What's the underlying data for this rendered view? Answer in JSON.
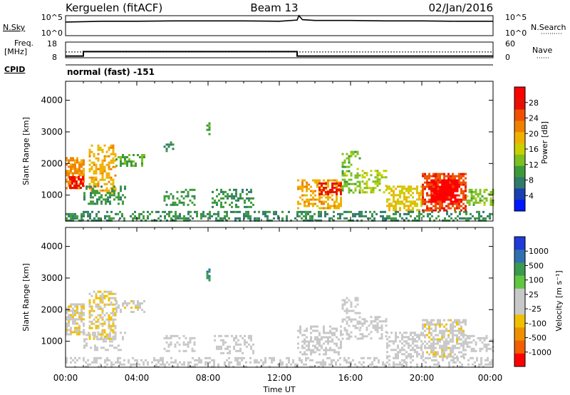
{
  "header": {
    "station": "Kerguelen (fitACF)",
    "beam": "Beam 13",
    "date": "02/Jan/2016"
  },
  "panels": {
    "nsky_label": "N.Sky",
    "nsky_ticks": [
      "10^5",
      "10^0"
    ],
    "nsearch_label": "N.Search",
    "nsearch_ticks": [
      "10^5",
      "10^0"
    ],
    "freq_label_1": "Freq.",
    "freq_label_2": "[MHz]",
    "freq_ticks": [
      "18",
      "8"
    ],
    "nave_label": "Nave",
    "nave_ticks": [
      "60",
      "0"
    ],
    "cpid_label": "CPID",
    "cpid_text": "normal (fast) -151"
  },
  "axes": {
    "xlabel": "Time UT",
    "xticks": [
      "00:00",
      "04:00",
      "08:00",
      "12:00",
      "16:00",
      "20:00",
      "00:00"
    ],
    "ylabel": "Slant Range [km]",
    "yticks": [
      "4000",
      "3000",
      "2000",
      "1000"
    ]
  },
  "colorbars": {
    "power": {
      "label": "Power [dB]",
      "ticks": [
        "28",
        "24",
        "20",
        "16",
        "12",
        "8",
        "4"
      ],
      "colors": [
        "#0018ff",
        "#1a3fb0",
        "#2f7a6a",
        "#3d9a3a",
        "#7dc020",
        "#c8d000",
        "#f0b000",
        "#f08000",
        "#f05000",
        "#e81000",
        "#ff0000"
      ]
    },
    "velocity": {
      "label": "Velocity [m s⁻¹]",
      "ticks": [
        "1000",
        "500",
        "100",
        "25",
        "-25",
        "-100",
        "-500",
        "-1000"
      ],
      "colors": [
        "#1f3bd8",
        "#3070b0",
        "#3a9a50",
        "#60c840",
        "#c8c8c8",
        "#c8c8c8",
        "#f0c000",
        "#f09000",
        "#f06000",
        "#ff0000"
      ]
    }
  },
  "chart_data": [
    {
      "type": "line",
      "name": "N.Sky / N.Search",
      "x": [
        0,
        2,
        4,
        6,
        8,
        10,
        12,
        13.0,
        13.1,
        13.3,
        14,
        16,
        18,
        20,
        22,
        24
      ],
      "y": [
        3.4,
        3.6,
        3.6,
        3.7,
        3.7,
        3.7,
        3.6,
        3.9,
        5.0,
        4.0,
        3.8,
        3.8,
        3.7,
        3.7,
        3.6,
        3.6
      ],
      "yscale": "log",
      "ylim": [
        0,
        5
      ]
    },
    {
      "type": "line",
      "name": "Frequency",
      "x": [
        0,
        1.0,
        1.0,
        13.0,
        13.0,
        24
      ],
      "y": [
        9.1,
        9.1,
        11.9,
        11.9,
        9.1,
        9.1
      ],
      "ylim": [
        8,
        18
      ]
    },
    {
      "type": "line",
      "name": "Nave",
      "x": [
        0,
        24
      ],
      "y": [
        22,
        22
      ],
      "ylim": [
        0,
        60
      ]
    },
    {
      "type": "heatmap",
      "name": "Power",
      "xlim": [
        0,
        24
      ],
      "ylim": [
        180,
        4600
      ],
      "zlim": [
        0,
        30
      ],
      "blobs": [
        {
          "t0": 0.0,
          "t1": 1.0,
          "r0": 1200,
          "r1": 2200,
          "z": 20,
          "d": 0.7
        },
        {
          "t0": 0.2,
          "t1": 1.0,
          "r0": 1200,
          "r1": 1600,
          "z": 27,
          "d": 0.8
        },
        {
          "t0": 1.3,
          "t1": 2.8,
          "r0": 1100,
          "r1": 2600,
          "z": 18,
          "d": 0.55
        },
        {
          "t0": 2.8,
          "t1": 4.4,
          "r0": 1900,
          "r1": 2300,
          "z": 11,
          "d": 0.5
        },
        {
          "t0": 1.0,
          "t1": 3.4,
          "r0": 700,
          "r1": 1300,
          "z": 9,
          "d": 0.45
        },
        {
          "t0": 5.5,
          "t1": 7.3,
          "r0": 700,
          "r1": 1200,
          "z": 9,
          "d": 0.4
        },
        {
          "t0": 8.2,
          "t1": 10.5,
          "r0": 600,
          "r1": 1200,
          "z": 9,
          "d": 0.35
        },
        {
          "t0": 7.9,
          "t1": 8.1,
          "r0": 2900,
          "r1": 3300,
          "z": 10,
          "d": 0.7
        },
        {
          "t0": 5.5,
          "t1": 6.0,
          "r0": 2300,
          "r1": 2700,
          "z": 8,
          "d": 0.4
        },
        {
          "t0": 13.0,
          "t1": 15.5,
          "r0": 600,
          "r1": 1500,
          "z": 18,
          "d": 0.55
        },
        {
          "t0": 14.2,
          "t1": 15.5,
          "r0": 1000,
          "r1": 1400,
          "z": 26,
          "d": 0.6
        },
        {
          "t0": 15.5,
          "t1": 16.5,
          "r0": 1100,
          "r1": 2400,
          "z": 12,
          "d": 0.45
        },
        {
          "t0": 16.5,
          "t1": 18.0,
          "r0": 1100,
          "r1": 1800,
          "z": 14,
          "d": 0.4
        },
        {
          "t0": 18.0,
          "t1": 20.0,
          "r0": 500,
          "r1": 1300,
          "z": 16,
          "d": 0.55
        },
        {
          "t0": 20.0,
          "t1": 22.5,
          "r0": 500,
          "r1": 1700,
          "z": 24,
          "d": 0.7
        },
        {
          "t0": 20.5,
          "t1": 22.0,
          "r0": 800,
          "r1": 1500,
          "z": 29,
          "d": 0.8
        },
        {
          "t0": 22.5,
          "t1": 24.0,
          "r0": 700,
          "r1": 1200,
          "z": 12,
          "d": 0.5
        },
        {
          "t0": 0.0,
          "t1": 24.0,
          "r0": 180,
          "r1": 500,
          "z": 8,
          "d": 0.45
        }
      ]
    },
    {
      "type": "heatmap",
      "name": "Velocity",
      "xlim": [
        0,
        24
      ],
      "ylim": [
        180,
        4600
      ],
      "zlim": [
        -1000,
        1000
      ],
      "blobs": [
        {
          "t0": 0.0,
          "t1": 1.0,
          "r0": 1200,
          "r1": 2200,
          "z": -150,
          "d": 0.7
        },
        {
          "t0": 1.3,
          "t1": 2.8,
          "r0": 1100,
          "r1": 2600,
          "z": -200,
          "d": 0.55
        },
        {
          "t0": 2.8,
          "t1": 4.4,
          "r0": 1900,
          "r1": 2300,
          "z": -120,
          "d": 0.5
        },
        {
          "t0": 1.0,
          "t1": 3.4,
          "r0": 700,
          "r1": 1300,
          "z": 0,
          "d": 0.3
        },
        {
          "t0": 5.5,
          "t1": 7.3,
          "r0": 700,
          "r1": 1200,
          "z": 0,
          "d": 0.35
        },
        {
          "t0": 8.2,
          "t1": 10.5,
          "r0": 600,
          "r1": 1200,
          "z": 0,
          "d": 0.3
        },
        {
          "t0": 7.9,
          "t1": 8.1,
          "r0": 2900,
          "r1": 3300,
          "z": 600,
          "d": 0.7
        },
        {
          "t0": 13.0,
          "t1": 15.5,
          "r0": 600,
          "r1": 1500,
          "z": 60,
          "d": 0.45
        },
        {
          "t0": 15.5,
          "t1": 16.5,
          "r0": 1100,
          "r1": 2400,
          "z": 80,
          "d": 0.45
        },
        {
          "t0": 16.5,
          "t1": 18.0,
          "r0": 1100,
          "r1": 1800,
          "z": 0,
          "d": 0.4
        },
        {
          "t0": 18.0,
          "t1": 20.0,
          "r0": 500,
          "r1": 1300,
          "z": 0,
          "d": 0.5
        },
        {
          "t0": 20.0,
          "t1": 22.5,
          "r0": 500,
          "r1": 1700,
          "z": -120,
          "d": 0.6
        },
        {
          "t0": 22.5,
          "t1": 24.0,
          "r0": 700,
          "r1": 1200,
          "z": -60,
          "d": 0.5
        },
        {
          "t0": 0.0,
          "t1": 24.0,
          "r0": 180,
          "r1": 500,
          "z": 40,
          "d": 0.35
        }
      ]
    }
  ]
}
